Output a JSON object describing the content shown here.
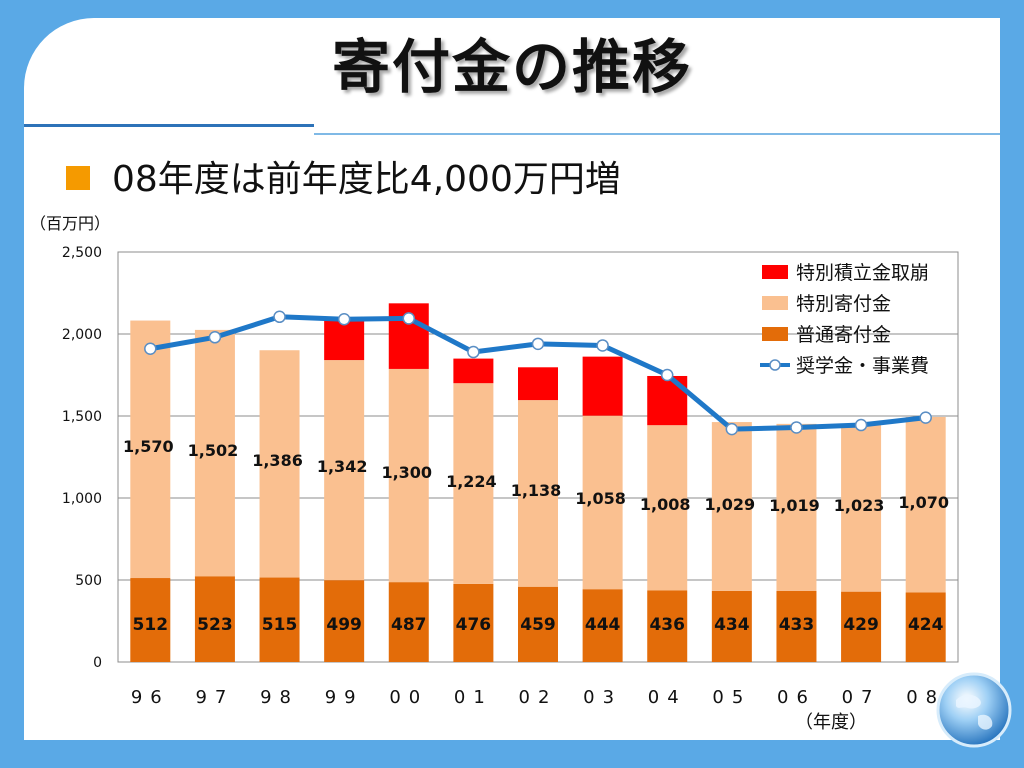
{
  "slide": {
    "title": "寄付金の推移",
    "subtitle": "08年度は前年度比4,000万円増",
    "unit_label": "（百万円）",
    "x_unit_label": "（年度）"
  },
  "colors": {
    "background": "#5aa9e6",
    "bullet": "#f59a00",
    "regular": "#e36c09",
    "special": "#fac090",
    "withdrawal": "#ff0000",
    "line": "#1f78c8"
  },
  "chart_data": {
    "type": "bar",
    "stacked": true,
    "categories": [
      "96",
      "97",
      "98",
      "99",
      "00",
      "01",
      "02",
      "03",
      "04",
      "05",
      "06",
      "07",
      "08"
    ],
    "ylim": [
      0,
      2500
    ],
    "yticks": [
      0,
      500,
      1000,
      1500,
      2000,
      2500
    ],
    "ytick_labels": [
      "0",
      "500",
      "1,000",
      "1,500",
      "2,000",
      "2,500"
    ],
    "grid": true,
    "legend_position": "top-right",
    "series": [
      {
        "name": "普通寄付金",
        "kind": "bar",
        "values": [
          512,
          523,
          515,
          499,
          487,
          476,
          459,
          444,
          436,
          434,
          433,
          429,
          424
        ],
        "labels": [
          "512",
          "523",
          "515",
          "499",
          "487",
          "476",
          "459",
          "444",
          "436",
          "434",
          "433",
          "429",
          "424"
        ]
      },
      {
        "name": "特別寄付金",
        "kind": "bar",
        "values": [
          1570,
          1502,
          1386,
          1342,
          1300,
          1224,
          1138,
          1058,
          1008,
          1029,
          1019,
          1023,
          1070
        ],
        "labels": [
          "1,570",
          "1,502",
          "1,386",
          "1,342",
          "1,300",
          "1,224",
          "1,138",
          "1,058",
          "1,008",
          "1,029",
          "1,019",
          "1,023",
          "1,070"
        ]
      },
      {
        "name": "特別積立金取崩",
        "kind": "bar",
        "values": [
          0,
          0,
          0,
          240,
          400,
          150,
          200,
          360,
          300,
          0,
          0,
          0,
          0
        ]
      },
      {
        "name": "奨学金・事業費",
        "kind": "line",
        "values": [
          1910,
          1980,
          2105,
          2090,
          2095,
          1890,
          1940,
          1930,
          1750,
          1420,
          1430,
          1445,
          1490
        ]
      }
    ]
  }
}
